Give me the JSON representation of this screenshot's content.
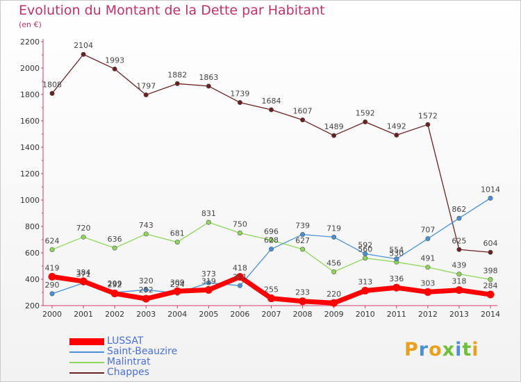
{
  "header": {
    "title": "Evolution du Montant de la Dette par Habitant",
    "subtitle": "(en €)"
  },
  "brand": {
    "text": "Proxiti",
    "colors": [
      "#e8a020",
      "#4a8fd8",
      "#e8a020",
      "#6fbf3a",
      "#4a8fd8",
      "#6fbf3a",
      "#e8a020"
    ]
  },
  "chart_data": {
    "type": "line",
    "title": "Evolution du Montant de la Dette par Habitant",
    "subtitle": "(en €)",
    "x": [
      "2000",
      "2001",
      "2002",
      "2003",
      "2004",
      "2005",
      "2006",
      "2007",
      "2008",
      "2009",
      "2010",
      "2011",
      "2012",
      "2013",
      "2014"
    ],
    "ylim": [
      200,
      2200
    ],
    "yticks": [
      200,
      400,
      600,
      800,
      1000,
      1200,
      1400,
      1600,
      1800,
      2000,
      2200
    ],
    "grid": false,
    "legend_position": "bottom-left",
    "series": [
      {
        "name": "LUSSAT",
        "color": "#ff0000",
        "values": [
          419,
          384,
          292,
          252,
          309,
          319,
          418,
          255,
          233,
          220,
          313,
          336,
          303,
          318,
          284
        ]
      },
      {
        "name": "Saint-Beauzire",
        "color": "#4a90d8",
        "values": [
          290,
          371,
          299,
          320,
          294,
          373,
          351,
          628,
          739,
          719,
          592,
          554,
          707,
          862,
          1014
        ]
      },
      {
        "name": "Malintrat",
        "color": "#8ed65a",
        "values": [
          624,
          720,
          636,
          743,
          681,
          831,
          750,
          696,
          627,
          456,
          560,
          530,
          491,
          439,
          398
        ]
      },
      {
        "name": "Chappes",
        "color": "#6b2020",
        "values": [
          1808,
          2104,
          1993,
          1797,
          1882,
          1863,
          1739,
          1684,
          1607,
          1489,
          1592,
          1492,
          1572,
          625,
          604
        ]
      }
    ]
  }
}
